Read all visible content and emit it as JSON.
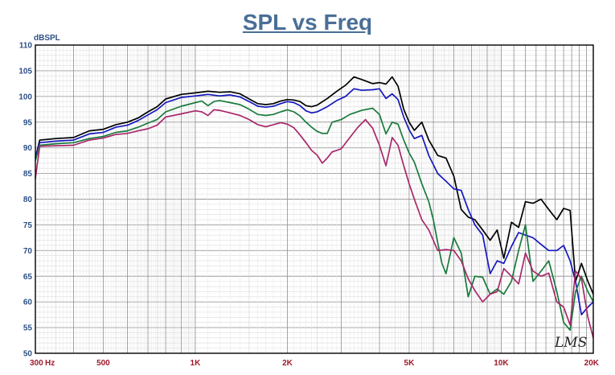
{
  "chart_data": {
    "type": "line",
    "title": "SPL vs Freq",
    "ylabel": "dBSPL",
    "xscale": "log",
    "xlim": [
      300,
      20000
    ],
    "ylim": [
      50,
      110
    ],
    "yticks": [
      50,
      55,
      60,
      65,
      70,
      75,
      80,
      85,
      90,
      95,
      100,
      105,
      110
    ],
    "xtick_labels": [
      {
        "f": 300,
        "label": "300"
      },
      {
        "f": 500,
        "label": "500"
      },
      {
        "f": 1000,
        "label": "1K"
      },
      {
        "f": 2000,
        "label": "2K"
      },
      {
        "f": 5000,
        "label": "5K"
      },
      {
        "f": 10000,
        "label": "10K"
      },
      {
        "f": 20000,
        "label": "20K"
      }
    ],
    "xunit_label": "Hz",
    "grid": true,
    "signature": "LMS",
    "series": [
      {
        "color": "#000000",
        "points": [
          [
            300,
            88
          ],
          [
            310,
            91.5
          ],
          [
            350,
            91.8
          ],
          [
            400,
            92
          ],
          [
            450,
            93.3
          ],
          [
            500,
            93.6
          ],
          [
            550,
            94.5
          ],
          [
            600,
            95
          ],
          [
            650,
            95.8
          ],
          [
            700,
            97
          ],
          [
            750,
            98
          ],
          [
            800,
            99.5
          ],
          [
            900,
            100.4
          ],
          [
            1000,
            100.7
          ],
          [
            1100,
            101
          ],
          [
            1200,
            100.8
          ],
          [
            1300,
            100.9
          ],
          [
            1400,
            100.5
          ],
          [
            1500,
            99.5
          ],
          [
            1600,
            98.6
          ],
          [
            1700,
            98.4
          ],
          [
            1800,
            98.6
          ],
          [
            1900,
            99.1
          ],
          [
            2000,
            99.4
          ],
          [
            2100,
            99.3
          ],
          [
            2200,
            99
          ],
          [
            2300,
            98.2
          ],
          [
            2400,
            98
          ],
          [
            2500,
            98.3
          ],
          [
            2700,
            99.6
          ],
          [
            2900,
            101
          ],
          [
            3100,
            102.2
          ],
          [
            3300,
            103.8
          ],
          [
            3500,
            103.3
          ],
          [
            3800,
            102.5
          ],
          [
            4000,
            102.7
          ],
          [
            4200,
            102.4
          ],
          [
            4400,
            103.8
          ],
          [
            4600,
            102
          ],
          [
            4800,
            97.5
          ],
          [
            5000,
            95
          ],
          [
            5200,
            93.4
          ],
          [
            5500,
            95
          ],
          [
            5800,
            91.5
          ],
          [
            6200,
            88.5
          ],
          [
            6600,
            88
          ],
          [
            7000,
            84.5
          ],
          [
            7400,
            78
          ],
          [
            7800,
            76.5
          ],
          [
            8200,
            76
          ],
          [
            8700,
            74
          ],
          [
            9200,
            72
          ],
          [
            9700,
            74
          ],
          [
            10200,
            68.5
          ],
          [
            10800,
            75.5
          ],
          [
            11400,
            74.5
          ],
          [
            12000,
            79.5
          ],
          [
            12700,
            79.2
          ],
          [
            13500,
            80
          ],
          [
            14300,
            78
          ],
          [
            15200,
            76
          ],
          [
            16000,
            78.2
          ],
          [
            16800,
            77.8
          ],
          [
            17500,
            64
          ],
          [
            18300,
            67.5
          ],
          [
            19200,
            64
          ],
          [
            20000,
            61.5
          ]
        ]
      },
      {
        "color": "#1418bd",
        "points": [
          [
            300,
            88
          ],
          [
            310,
            91
          ],
          [
            350,
            91.3
          ],
          [
            400,
            91.5
          ],
          [
            450,
            92.7
          ],
          [
            500,
            93
          ],
          [
            550,
            94
          ],
          [
            600,
            94.4
          ],
          [
            650,
            95.3
          ],
          [
            700,
            96.4
          ],
          [
            750,
            97.4
          ],
          [
            800,
            98.8
          ],
          [
            900,
            99.8
          ],
          [
            1000,
            100.1
          ],
          [
            1100,
            100.4
          ],
          [
            1200,
            100.1
          ],
          [
            1300,
            100.3
          ],
          [
            1400,
            99.9
          ],
          [
            1500,
            99
          ],
          [
            1600,
            98.1
          ],
          [
            1700,
            97.9
          ],
          [
            1800,
            98.1
          ],
          [
            1900,
            98.6
          ],
          [
            2000,
            99
          ],
          [
            2100,
            98.8
          ],
          [
            2200,
            98.2
          ],
          [
            2300,
            97.2
          ],
          [
            2400,
            96.8
          ],
          [
            2500,
            97
          ],
          [
            2700,
            98
          ],
          [
            2900,
            99.2
          ],
          [
            3100,
            100
          ],
          [
            3300,
            101.5
          ],
          [
            3500,
            101.2
          ],
          [
            3800,
            101.3
          ],
          [
            4000,
            101.5
          ],
          [
            4200,
            99.6
          ],
          [
            4400,
            100.5
          ],
          [
            4600,
            99.4
          ],
          [
            4800,
            96
          ],
          [
            5000,
            93.5
          ],
          [
            5200,
            91.8
          ],
          [
            5500,
            92.4
          ],
          [
            5800,
            88.5
          ],
          [
            6200,
            85
          ],
          [
            6600,
            83.5
          ],
          [
            7000,
            82
          ],
          [
            7400,
            81.7
          ],
          [
            7800,
            78
          ],
          [
            8200,
            75
          ],
          [
            8700,
            73
          ],
          [
            9200,
            65.5
          ],
          [
            9700,
            68
          ],
          [
            10200,
            67.5
          ],
          [
            10800,
            70.8
          ],
          [
            11400,
            73.5
          ],
          [
            12000,
            73
          ],
          [
            12700,
            72.5
          ],
          [
            13500,
            71.2
          ],
          [
            14300,
            70
          ],
          [
            15200,
            70
          ],
          [
            16000,
            71
          ],
          [
            16800,
            68
          ],
          [
            17500,
            64
          ],
          [
            18300,
            57.5
          ],
          [
            19200,
            59
          ],
          [
            20000,
            60
          ]
        ]
      },
      {
        "color": "#1a7a3c",
        "points": [
          [
            300,
            87.5
          ],
          [
            310,
            90.5
          ],
          [
            350,
            90.8
          ],
          [
            400,
            91
          ],
          [
            450,
            91.8
          ],
          [
            500,
            92.2
          ],
          [
            550,
            93
          ],
          [
            600,
            93.3
          ],
          [
            650,
            94
          ],
          [
            700,
            94.8
          ],
          [
            750,
            95.5
          ],
          [
            800,
            97
          ],
          [
            900,
            98.1
          ],
          [
            1000,
            98.8
          ],
          [
            1050,
            99.1
          ],
          [
            1100,
            98.2
          ],
          [
            1150,
            99
          ],
          [
            1200,
            99.2
          ],
          [
            1300,
            98.8
          ],
          [
            1400,
            98.4
          ],
          [
            1500,
            97.5
          ],
          [
            1600,
            96.5
          ],
          [
            1700,
            96.3
          ],
          [
            1800,
            96.5
          ],
          [
            1900,
            97
          ],
          [
            2000,
            97.4
          ],
          [
            2100,
            97
          ],
          [
            2200,
            96.2
          ],
          [
            2300,
            95
          ],
          [
            2400,
            94
          ],
          [
            2500,
            93.2
          ],
          [
            2600,
            92.8
          ],
          [
            2700,
            92.8
          ],
          [
            2800,
            95
          ],
          [
            3000,
            95.5
          ],
          [
            3200,
            96.5
          ],
          [
            3500,
            97.3
          ],
          [
            3800,
            97.7
          ],
          [
            4000,
            96.5
          ],
          [
            4200,
            92.7
          ],
          [
            4400,
            95
          ],
          [
            4600,
            94.6
          ],
          [
            4800,
            91.5
          ],
          [
            5000,
            89
          ],
          [
            5200,
            87.2
          ],
          [
            5500,
            83
          ],
          [
            5800,
            79.5
          ],
          [
            6000,
            76
          ],
          [
            6200,
            71.5
          ],
          [
            6400,
            67.5
          ],
          [
            6600,
            65.5
          ],
          [
            7000,
            72.5
          ],
          [
            7400,
            69.5
          ],
          [
            7800,
            61
          ],
          [
            8200,
            65
          ],
          [
            8700,
            64.8
          ],
          [
            9200,
            61.5
          ],
          [
            9700,
            62.5
          ],
          [
            10200,
            61.5
          ],
          [
            10800,
            64
          ],
          [
            11400,
            70
          ],
          [
            12000,
            75
          ],
          [
            12700,
            64
          ],
          [
            13500,
            66
          ],
          [
            14300,
            68
          ],
          [
            15200,
            62
          ],
          [
            16000,
            56
          ],
          [
            16800,
            54.5
          ],
          [
            17500,
            62
          ],
          [
            18300,
            65
          ],
          [
            19200,
            62
          ],
          [
            20000,
            60
          ]
        ]
      },
      {
        "color": "#a8286b",
        "points": [
          [
            300,
            84
          ],
          [
            310,
            90.3
          ],
          [
            350,
            90.4
          ],
          [
            400,
            90.5
          ],
          [
            450,
            91.5
          ],
          [
            500,
            91.9
          ],
          [
            550,
            92.6
          ],
          [
            600,
            92.8
          ],
          [
            650,
            93.3
          ],
          [
            700,
            93.7
          ],
          [
            750,
            94.4
          ],
          [
            800,
            96
          ],
          [
            900,
            96.6
          ],
          [
            1000,
            97.2
          ],
          [
            1050,
            97
          ],
          [
            1100,
            96.3
          ],
          [
            1150,
            97.4
          ],
          [
            1200,
            97.3
          ],
          [
            1300,
            96.8
          ],
          [
            1400,
            96.3
          ],
          [
            1500,
            95.5
          ],
          [
            1600,
            94.5
          ],
          [
            1700,
            94.1
          ],
          [
            1800,
            94.5
          ],
          [
            1900,
            94.9
          ],
          [
            2000,
            94.6
          ],
          [
            2100,
            93.9
          ],
          [
            2200,
            92.5
          ],
          [
            2300,
            91
          ],
          [
            2400,
            89.5
          ],
          [
            2500,
            88.6
          ],
          [
            2600,
            87
          ],
          [
            2700,
            88
          ],
          [
            2800,
            89.2
          ],
          [
            3000,
            89.8
          ],
          [
            3200,
            92
          ],
          [
            3400,
            94
          ],
          [
            3600,
            95.5
          ],
          [
            3800,
            93.8
          ],
          [
            4000,
            90.5
          ],
          [
            4200,
            86.5
          ],
          [
            4400,
            92
          ],
          [
            4600,
            90.5
          ],
          [
            4800,
            86.5
          ],
          [
            5000,
            83
          ],
          [
            5200,
            80
          ],
          [
            5500,
            76
          ],
          [
            5800,
            74
          ],
          [
            6200,
            70
          ],
          [
            6600,
            70.2
          ],
          [
            7000,
            70
          ],
          [
            7400,
            68
          ],
          [
            7800,
            64.5
          ],
          [
            8200,
            62.2
          ],
          [
            8700,
            60
          ],
          [
            9200,
            61.5
          ],
          [
            9700,
            62
          ],
          [
            10200,
            66.5
          ],
          [
            10800,
            65
          ],
          [
            11400,
            63.5
          ],
          [
            12000,
            69.5
          ],
          [
            12700,
            66
          ],
          [
            13500,
            65
          ],
          [
            14300,
            65.6
          ],
          [
            15200,
            60
          ],
          [
            16000,
            59
          ],
          [
            16800,
            55.5
          ],
          [
            17500,
            66
          ],
          [
            18300,
            64.5
          ],
          [
            19200,
            57
          ],
          [
            20000,
            53
          ]
        ]
      }
    ]
  }
}
